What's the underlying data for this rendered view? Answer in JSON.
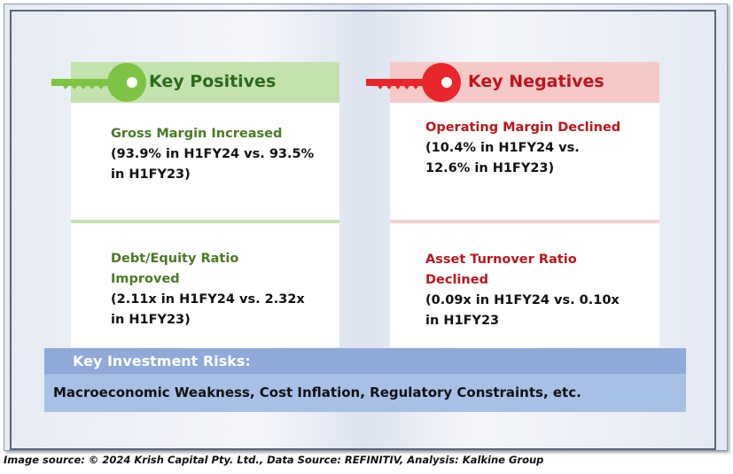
{
  "positives": {
    "title": "Key Positives",
    "color": "#2a6a1c",
    "items": [
      {
        "title": "Gross Margin Increased",
        "detail_lines": [
          "(93.9% in H1FY24 vs. 93.5%",
          "in H1FY23)"
        ]
      },
      {
        "title_lines": [
          "Debt/Equity Ratio",
          "Improved"
        ],
        "detail_lines": [
          "(2.11x in H1FY24 vs. 2.32x",
          "in H1FY23)"
        ]
      }
    ]
  },
  "negatives": {
    "title": "Key Negatives",
    "color": "#c0141b",
    "items": [
      {
        "title": "Operating Margin Declined",
        "detail_lines": [
          "(10.4% in H1FY24 vs.",
          "12.6% in H1FY23)"
        ]
      },
      {
        "title_lines": [
          "Asset Turnover Ratio",
          "Declined"
        ],
        "detail_lines": [
          "(0.09x in H1FY24 vs. 0.10x",
          "in H1FY23"
        ]
      }
    ]
  },
  "risks": {
    "title": "Key Investment Risks:",
    "text": "Macroeconomic Weakness, Cost Inflation, Regulatory Constraints, etc."
  },
  "source": "Image source: © 2024 Krish Capital Pty. Ltd., Data Source: REFINITIV, Analysis: Kalkine Group",
  "icons": {
    "positive": "green-key-icon",
    "negative": "red-key-icon"
  }
}
